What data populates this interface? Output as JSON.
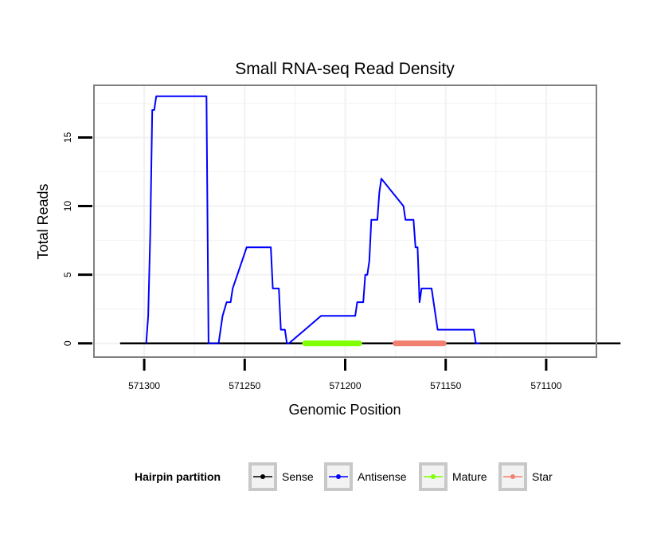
{
  "chart_data": {
    "type": "line",
    "title": "Small RNA-seq Read Density",
    "xlabel": "Genomic Position",
    "ylabel": "Total Reads",
    "x_reversed": true,
    "xlim": [
      571325,
      571075
    ],
    "ylim": [
      -1,
      18.8
    ],
    "x_ticks": [
      571300,
      571250,
      571200,
      571150,
      571100
    ],
    "x_tick_labels": [
      "571300",
      "571250",
      "571200",
      "571150",
      "571100"
    ],
    "y_ticks": [
      0,
      5,
      10,
      15
    ],
    "y_tick_labels": [
      "0",
      "5",
      "10",
      "15"
    ],
    "grid": true,
    "legend": {
      "title": "Hairpin partition",
      "position": "bottom",
      "entries": [
        {
          "label": "Sense",
          "color": "#000000"
        },
        {
          "label": "Antisense",
          "color": "#0000ff"
        },
        {
          "label": "Mature",
          "color": "#7fff00"
        },
        {
          "label": "Star",
          "color": "#f08070"
        }
      ]
    },
    "series": [
      {
        "name": "Sense",
        "color": "#000000",
        "x": [
          571312,
          571063
        ],
        "y": [
          0,
          0
        ]
      },
      {
        "name": "Antisense",
        "color": "#0000ff",
        "x": [
          571299,
          571298,
          571297,
          571296,
          571295,
          571294,
          571293,
          571269,
          571268,
          571267,
          571266,
          571265,
          571264,
          571263,
          571261,
          571259,
          571258,
          571257,
          571256,
          571249,
          571243,
          571242,
          571237,
          571236,
          571235,
          571234,
          571233,
          571232,
          571230,
          571229,
          571228,
          571212,
          571211,
          571198,
          571197,
          571195,
          571194,
          571193,
          571192,
          571191,
          571190,
          571189,
          571188,
          571187,
          571186,
          571185,
          571184,
          571183,
          571182,
          571171,
          571170,
          571168,
          571167,
          571166,
          571165,
          571164,
          571163,
          571162,
          571158,
          571157,
          571154,
          571144,
          571136,
          571135,
          571134,
          571133
        ],
        "y": [
          0,
          2,
          8,
          17,
          17,
          18,
          18,
          18,
          0,
          0,
          0,
          0,
          0,
          0,
          2,
          3,
          3,
          3,
          4,
          7,
          7,
          7,
          7,
          4,
          4,
          4,
          4,
          1,
          1,
          0,
          0,
          2,
          2,
          2,
          2,
          2,
          3,
          3,
          3,
          3,
          5,
          5,
          6,
          9,
          9,
          9,
          9,
          11,
          12,
          10,
          9,
          9,
          9,
          9,
          7,
          7,
          3,
          4,
          4,
          4,
          1,
          1,
          1,
          0,
          0,
          0
        ]
      },
      {
        "name": "Mature",
        "color": "#7fff00",
        "x": [
          571220,
          571193
        ],
        "y": [
          0,
          0
        ]
      },
      {
        "name": "Star",
        "color": "#f08070",
        "x": [
          571175,
          571151
        ],
        "y": [
          0,
          0
        ]
      }
    ]
  }
}
